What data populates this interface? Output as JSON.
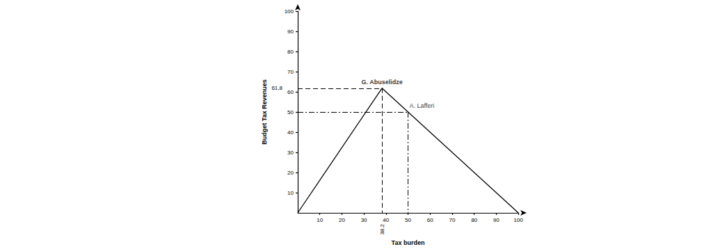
{
  "chart_data": {
    "type": "line",
    "x": [
      0,
      38.2,
      50,
      100
    ],
    "values": [
      0,
      61.8,
      50,
      0
    ],
    "color": "#000000",
    "xlabel": "Tax burden",
    "ylabel": "Budget Tax Revenues",
    "xlim": [
      0,
      100
    ],
    "ylim": [
      0,
      100
    ],
    "xticks": [
      10,
      20,
      30,
      38.2,
      40,
      50,
      60,
      70,
      80,
      90,
      100
    ],
    "yticks": [
      10,
      20,
      30,
      40,
      50,
      60,
      {
        "value": 61.8,
        "label": "61,8"
      },
      70,
      80,
      90,
      100
    ],
    "grid": false,
    "annotations": [
      {
        "text": "G. Abuselidze",
        "x": 38.2,
        "y": 61.8
      },
      {
        "text": "A. Lafferi",
        "x": 50,
        "y": 50
      }
    ]
  }
}
